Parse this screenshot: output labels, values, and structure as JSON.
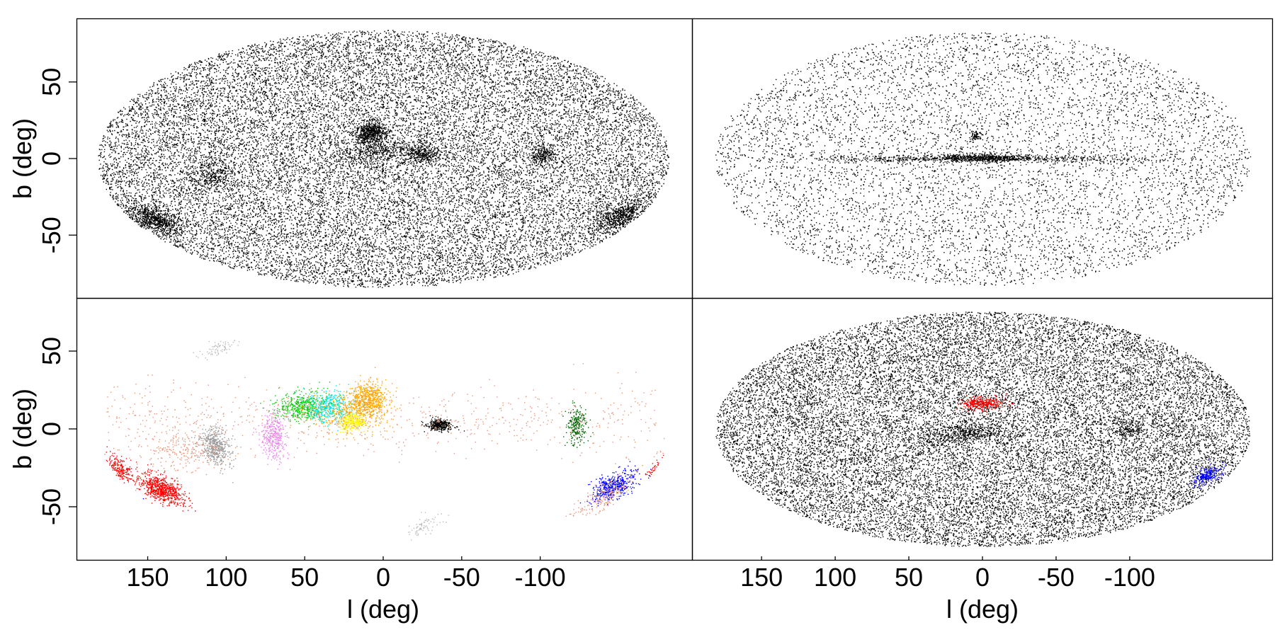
{
  "chart_data": [
    {
      "type": "scatter",
      "panel": "top-left",
      "projection": "aitoff",
      "xlabel": "",
      "ylabel": "b (deg)",
      "xlim": [
        180,
        -180
      ],
      "ylim": [
        -90,
        90
      ],
      "xticks": [],
      "yticks": [
        "50",
        "0",
        "-50"
      ],
      "grid": false,
      "legend": "none",
      "series": [
        {
          "color": "#000000",
          "background": "uniform all-sky",
          "clumps": [
            {
              "l": 165,
              "b": -30,
              "w": 7,
              "h": 4,
              "weight": 3
            },
            {
              "l": -168,
              "b": -28,
              "w": 7,
              "h": 4,
              "weight": 2.5
            },
            {
              "l": 8,
              "b": 18,
              "w": 5,
              "h": 4,
              "weight": 2.5
            },
            {
              "l": 5,
              "b": 5,
              "w": 15,
              "h": 4,
              "weight": 1.5
            },
            {
              "l": -25,
              "b": 3,
              "w": 6,
              "h": 3,
              "weight": 1.2
            },
            {
              "l": -100,
              "b": 2,
              "w": 4,
              "h": 3,
              "weight": 1
            },
            {
              "l": 110,
              "b": -10,
              "w": 8,
              "h": 4,
              "weight": 1
            }
          ]
        }
      ]
    },
    {
      "type": "scatter",
      "panel": "top-right",
      "projection": "aitoff",
      "xlabel": "",
      "ylabel": "",
      "xlim": [
        180,
        -180
      ],
      "ylim": [
        -90,
        90
      ],
      "xticks": [],
      "yticks": [],
      "grid": false,
      "legend": "none",
      "series": [
        {
          "color": "#000000",
          "background": "sparse all-sky",
          "clumps": [
            {
              "l": 0,
              "b": 0,
              "w": 60,
              "h": 1.2,
              "weight": 3
            },
            {
              "l": 0,
              "b": 1,
              "w": 15,
              "h": 1.5,
              "weight": 2
            },
            {
              "l": 5,
              "b": 16,
              "w": 2,
              "h": 2,
              "weight": 0.3
            }
          ]
        }
      ]
    },
    {
      "type": "scatter",
      "panel": "bottom-left",
      "projection": "aitoff",
      "xlabel": "l (deg)",
      "ylabel": "b (deg)",
      "xlim": [
        180,
        -180
      ],
      "ylim": [
        -90,
        90
      ],
      "xticks": [
        "150",
        "100",
        "50",
        "0",
        "-50",
        "-100"
      ],
      "yticks": [
        "50",
        "0",
        "-50"
      ],
      "grid": false,
      "legend": "none",
      "series": [
        {
          "color": "#ff0000",
          "clumps": [
            {
              "l": 160,
              "b": -30,
              "w": 6,
              "h": 4,
              "weight": 3
            },
            {
              "l": 175,
              "b": -18,
              "w": 4,
              "h": 3,
              "weight": 1
            }
          ]
        },
        {
          "color": "#999999",
          "clumps": [
            {
              "l": 108,
              "b": -10,
              "w": 5,
              "h": 6,
              "weight": 2
            }
          ]
        },
        {
          "color": "#ee82ee",
          "clumps": [
            {
              "l": 70,
              "b": -5,
              "w": 4,
              "h": 8,
              "weight": 1.5
            }
          ]
        },
        {
          "color": "#00cc00",
          "clumps": [
            {
              "l": 52,
              "b": 15,
              "w": 9,
              "h": 5,
              "weight": 2
            }
          ]
        },
        {
          "color": "#00e5ee",
          "clumps": [
            {
              "l": 35,
              "b": 15,
              "w": 8,
              "h": 5,
              "weight": 1.5
            }
          ]
        },
        {
          "color": "#ffa500",
          "clumps": [
            {
              "l": 10,
              "b": 20,
              "w": 7,
              "h": 6,
              "weight": 2.5
            },
            {
              "l": 22,
              "b": 10,
              "w": 12,
              "h": 7,
              "weight": 1.5
            }
          ]
        },
        {
          "color": "#ffff00",
          "clumps": [
            {
              "l": 20,
              "b": 5,
              "w": 4,
              "h": 3,
              "weight": 1
            }
          ]
        },
        {
          "color": "#000000",
          "clumps": [
            {
              "l": -35,
              "b": 3,
              "w": 4,
              "h": 2,
              "weight": 1.5
            }
          ]
        },
        {
          "color": "#006400",
          "clumps": [
            {
              "l": -122,
              "b": 2,
              "w": 3,
              "h": 5,
              "weight": 1
            }
          ]
        },
        {
          "color": "#0000ff",
          "clumps": [
            {
              "l": -163,
              "b": -28,
              "w": 6,
              "h": 4,
              "weight": 2
            }
          ]
        },
        {
          "color": "#e9967a",
          "clumps": [
            {
              "l": 0,
              "b": 5,
              "w": 150,
              "h": 10,
              "weight": 3
            },
            {
              "l": -165,
              "b": -32,
              "w": 6,
              "h": 6,
              "weight": 0.8
            },
            {
              "l": 130,
              "b": -12,
              "w": 15,
              "h": 6,
              "weight": 1
            }
          ]
        },
        {
          "color": "#bbbbbb",
          "clumps": [
            {
              "l": -50,
              "b": -65,
              "w": 8,
              "h": 4,
              "weight": 0.3
            },
            {
              "l": 140,
              "b": 45,
              "w": 5,
              "h": 3,
              "weight": 0.3
            }
          ]
        }
      ]
    },
    {
      "type": "scatter",
      "panel": "bottom-right",
      "projection": "aitoff",
      "xlabel": "l (deg)",
      "ylabel": "",
      "xlim": [
        180,
        -180
      ],
      "ylim": [
        -90,
        90
      ],
      "xticks": [
        "150",
        "100",
        "50",
        "0",
        "-50",
        "-100"
      ],
      "yticks": [],
      "grid": false,
      "legend": "none",
      "series": [
        {
          "color": "#000000",
          "background": "uniform all-sky",
          "clumps": [
            {
              "l": 5,
              "b": -2,
              "w": 10,
              "h": 3,
              "weight": 1
            },
            {
              "l": 25,
              "b": -5,
              "w": 12,
              "h": 4,
              "weight": 0.8
            },
            {
              "l": -100,
              "b": 0,
              "w": 6,
              "h": 3,
              "weight": 0.6
            }
          ]
        },
        {
          "color": "#ff0000",
          "clumps": [
            {
              "l": 0,
              "b": 20,
              "w": 7,
              "h": 2.5,
              "weight": 1.5
            }
          ]
        },
        {
          "color": "#0000ff",
          "clumps": [
            {
              "l": -165,
              "b": -25,
              "w": 4,
              "h": 2.5,
              "weight": 1
            }
          ]
        }
      ]
    }
  ]
}
